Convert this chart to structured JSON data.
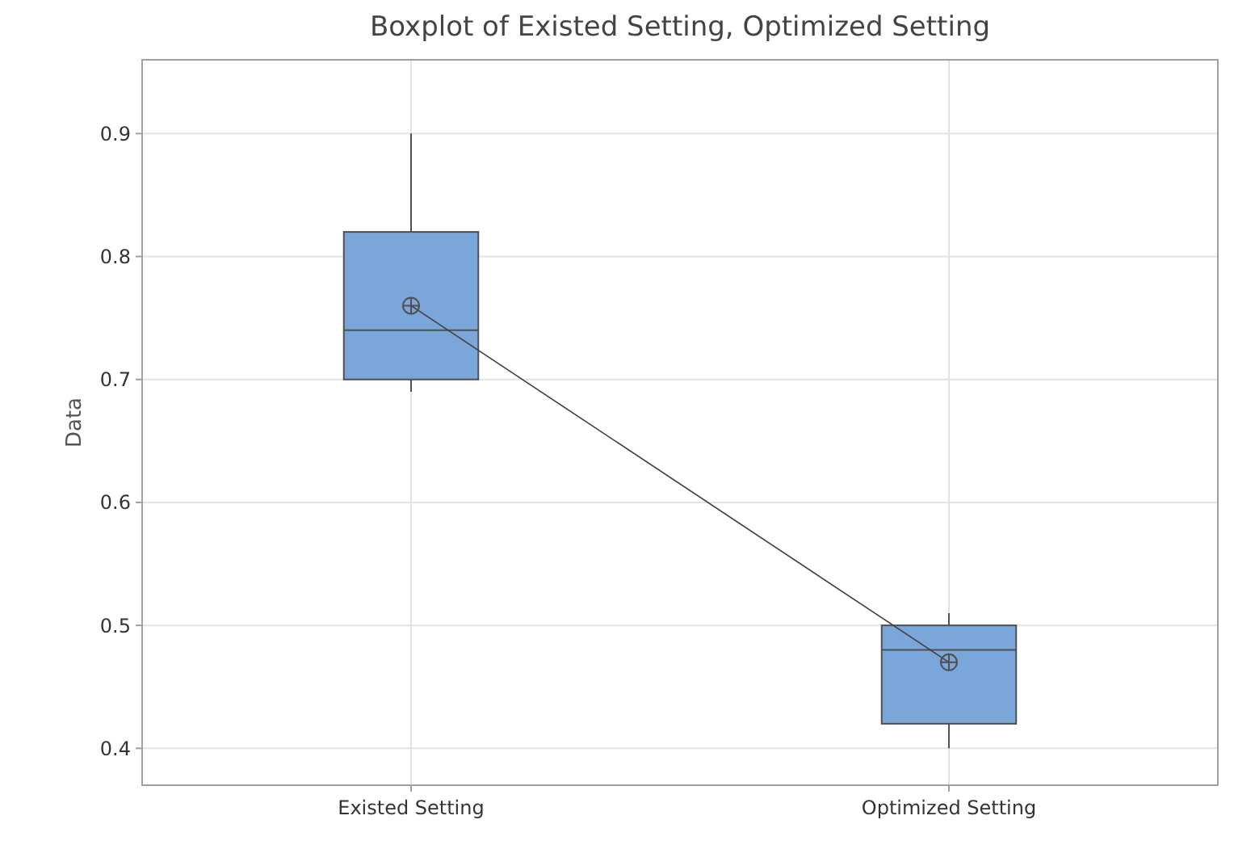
{
  "chart_data": {
    "type": "box",
    "title": "Boxplot of Existed Setting, Optimized Setting",
    "ylabel": "Data",
    "categories": [
      "Existed Setting",
      "Optimized Setting"
    ],
    "boxes": [
      {
        "low": 0.69,
        "q1": 0.7,
        "median": 0.74,
        "q3": 0.82,
        "high": 0.9,
        "mean": 0.76
      },
      {
        "low": 0.4,
        "q1": 0.42,
        "median": 0.48,
        "q3": 0.5,
        "high": 0.51,
        "mean": 0.47
      }
    ],
    "color": "#7ba6d9",
    "series": [
      {
        "type": "line",
        "values": [
          0.76,
          0.47
        ],
        "color": "#404040",
        "marker": "none"
      }
    ],
    "ylim": [
      0.37,
      0.96
    ],
    "yticks": [
      0.4,
      0.5,
      0.6,
      0.7,
      0.8,
      0.9
    ],
    "grid": true
  }
}
